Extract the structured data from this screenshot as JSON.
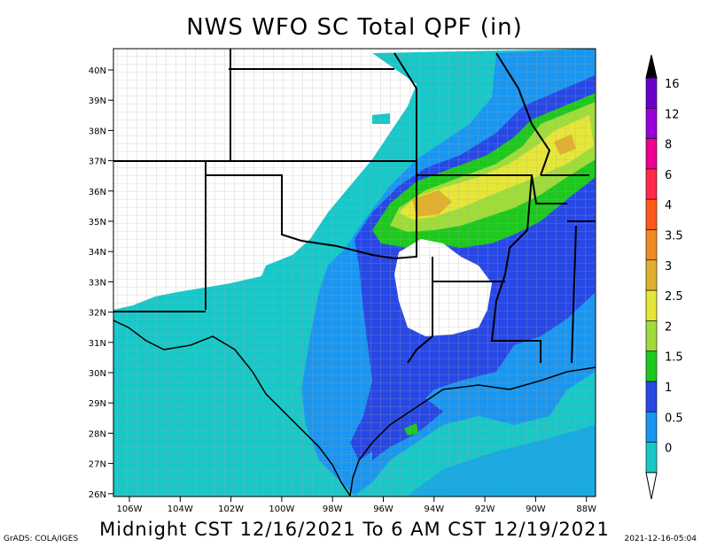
{
  "title": "NWS WFO SC Total QPF (in)",
  "subtitle": "Midnight CST 12/16/2021 To 6 AM CST 12/19/2021",
  "credit": "GrADS: COLA/IGES",
  "timestamp": "2021-12-16-05:04",
  "lat_labels": [
    "40N",
    "39N",
    "38N",
    "37N",
    "36N",
    "35N",
    "34N",
    "33N",
    "32N",
    "31N",
    "30N",
    "29N",
    "28N",
    "27N",
    "26N"
  ],
  "lon_labels": [
    "106W",
    "104W",
    "102W",
    "100W",
    "98W",
    "96W",
    "94W",
    "92W",
    "90W",
    "88W"
  ],
  "colorbar": {
    "labels": [
      "16",
      "12",
      "8",
      "6",
      "4",
      "3.5",
      "3",
      "2.5",
      "2",
      "1.5",
      "1",
      "0.5",
      "0"
    ],
    "colors": [
      "#6a00c8",
      "#9a00d8",
      "#ee0090",
      "#ff2a4a",
      "#ff5a1a",
      "#f08a22",
      "#e0b030",
      "#e6e63a",
      "#a0dc3c",
      "#1ec81e",
      "#2848e6",
      "#1a96f0",
      "#18c8c8"
    ],
    "top_color": "#000000",
    "bottom_color": "#ffffff"
  },
  "colors": {
    "cyan": "#18c8c8",
    "lightblue": "#1a96f0",
    "blue": "#2848e6",
    "green": "#1ec81e",
    "lightgreen": "#a0dc3c",
    "yellow": "#e6e63a",
    "gold": "#e0b030"
  }
}
